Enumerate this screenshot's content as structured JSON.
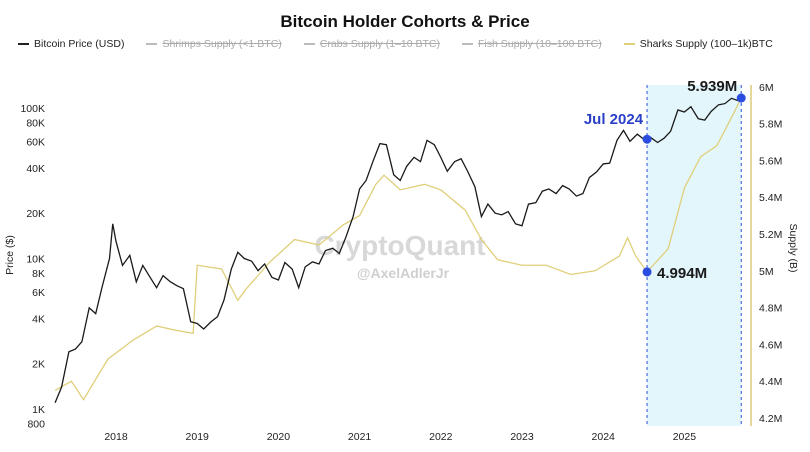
{
  "chart_data": {
    "type": "line",
    "title": "Bitcoin Holder Cohorts & Price",
    "legend": [
      {
        "label": "Bitcoin Price (USD)",
        "color": "#222222",
        "active": true
      },
      {
        "label": "Shrimps Supply (<1 BTC)",
        "color": "#bbbbbb",
        "active": false
      },
      {
        "label": "Crabs Supply (1–10 BTC)",
        "color": "#bbbbbb",
        "active": false
      },
      {
        "label": "Fish Supply (10–100 BTC)",
        "color": "#bbbbbb",
        "active": false
      },
      {
        "label": "Sharks Supply (100–1k)BTC",
        "color": "#e0cf7a",
        "active": true
      }
    ],
    "legend_position": "top",
    "ylabel_left": "Price ($)",
    "ylabel_right": "Supply (B)",
    "x_ticks": [
      "2018",
      "2019",
      "2020",
      "2021",
      "2022",
      "2023",
      "2024",
      "2025"
    ],
    "y_left_scale": "log",
    "y_left_ticks": [
      {
        "v": 800,
        "label": "800"
      },
      {
        "v": 1000,
        "label": "1K"
      },
      {
        "v": 2000,
        "label": "2K"
      },
      {
        "v": 4000,
        "label": "4K"
      },
      {
        "v": 6000,
        "label": "6K"
      },
      {
        "v": 8000,
        "label": "8K"
      },
      {
        "v": 10000,
        "label": "10K"
      },
      {
        "v": 20000,
        "label": "20K"
      },
      {
        "v": 40000,
        "label": "40K"
      },
      {
        "v": 60000,
        "label": "60K"
      },
      {
        "v": 80000,
        "label": "80K"
      },
      {
        "v": 100000,
        "label": "100K"
      }
    ],
    "y_right_ticks": [
      {
        "v": 4.2,
        "label": "4.2M"
      },
      {
        "v": 4.4,
        "label": "4.4M"
      },
      {
        "v": 4.6,
        "label": "4.6M"
      },
      {
        "v": 4.8,
        "label": "4.8M"
      },
      {
        "v": 5.0,
        "label": "5M"
      },
      {
        "v": 5.2,
        "label": "5.2M"
      },
      {
        "v": 5.4,
        "label": "5.4M"
      },
      {
        "v": 5.6,
        "label": "5.6M"
      },
      {
        "v": 5.8,
        "label": "5.8M"
      },
      {
        "v": 6.0,
        "label": "6M"
      }
    ],
    "ylim_left": [
      800,
      130000
    ],
    "ylim_right": [
      4.2,
      6.0
    ],
    "xlim": [
      2017.2,
      2025.75
    ],
    "series": [
      {
        "name": "Bitcoin Price (USD)",
        "color": "#1a1a1a",
        "x": [
          2017.25,
          2017.33,
          2017.42,
          2017.5,
          2017.58,
          2017.67,
          2017.75,
          2017.83,
          2017.92,
          2017.96,
          2018.0,
          2018.08,
          2018.17,
          2018.25,
          2018.33,
          2018.42,
          2018.5,
          2018.58,
          2018.67,
          2018.75,
          2018.83,
          2018.92,
          2019.0,
          2019.08,
          2019.17,
          2019.25,
          2019.33,
          2019.42,
          2019.5,
          2019.58,
          2019.67,
          2019.75,
          2019.83,
          2019.92,
          2020.0,
          2020.08,
          2020.17,
          2020.25,
          2020.33,
          2020.42,
          2020.5,
          2020.58,
          2020.67,
          2020.75,
          2020.83,
          2020.92,
          2021.0,
          2021.08,
          2021.17,
          2021.25,
          2021.33,
          2021.42,
          2021.5,
          2021.58,
          2021.67,
          2021.75,
          2021.83,
          2021.92,
          2022.0,
          2022.08,
          2022.17,
          2022.25,
          2022.33,
          2022.42,
          2022.5,
          2022.58,
          2022.67,
          2022.75,
          2022.83,
          2022.92,
          2023.0,
          2023.08,
          2023.17,
          2023.25,
          2023.33,
          2023.42,
          2023.5,
          2023.58,
          2023.67,
          2023.75,
          2023.83,
          2023.92,
          2024.0,
          2024.08,
          2024.17,
          2024.25,
          2024.33,
          2024.42,
          2024.5,
          2024.58,
          2024.67,
          2024.75,
          2024.83,
          2024.92,
          2025.0,
          2025.08,
          2025.17,
          2025.25,
          2025.33,
          2025.42,
          2025.5,
          2025.58,
          2025.7
        ],
        "y": [
          1100,
          1400,
          2400,
          2500,
          2800,
          4700,
          4300,
          6500,
          10000,
          17000,
          13000,
          9000,
          10500,
          7000,
          9000,
          7500,
          6400,
          7700,
          7000,
          6600,
          6300,
          3800,
          3700,
          3400,
          3800,
          4100,
          5300,
          8500,
          11000,
          10000,
          9600,
          8300,
          9200,
          7500,
          7200,
          9400,
          8500,
          6400,
          8800,
          9500,
          9200,
          11300,
          11700,
          10800,
          13800,
          19000,
          29000,
          33000,
          45000,
          58000,
          57000,
          36000,
          33000,
          41000,
          47000,
          44000,
          61000,
          57000,
          47000,
          38000,
          44000,
          46000,
          38000,
          30000,
          19000,
          23000,
          20000,
          19500,
          20500,
          17000,
          16500,
          23000,
          23500,
          28000,
          29000,
          27000,
          30500,
          29000,
          26000,
          27000,
          34500,
          37700,
          42500,
          43000,
          61000,
          71000,
          60000,
          67000,
          62000,
          64000,
          59000,
          63000,
          70000,
          97000,
          94000,
          102000,
          85000,
          83000,
          95000,
          105000,
          107000,
          116000,
          110000
        ]
      },
      {
        "name": "Sharks Supply (100–1k)BTC",
        "color": "#e0cf7a",
        "x": [
          2017.25,
          2017.45,
          2017.6,
          2017.9,
          2018.2,
          2018.5,
          2018.7,
          2018.95,
          2019.0,
          2019.3,
          2019.5,
          2019.6,
          2019.9,
          2020.2,
          2020.5,
          2020.8,
          2021.0,
          2021.2,
          2021.3,
          2021.5,
          2021.8,
          2022.0,
          2022.3,
          2022.5,
          2022.7,
          2023.0,
          2023.3,
          2023.6,
          2023.9,
          2024.2,
          2024.3,
          2024.4,
          2024.54,
          2024.8,
          2025.0,
          2025.2,
          2025.4,
          2025.6,
          2025.7
        ],
        "y": [
          4.35,
          4.4,
          4.3,
          4.52,
          4.62,
          4.7,
          4.68,
          4.66,
          5.03,
          5.01,
          4.84,
          4.9,
          5.05,
          5.17,
          5.14,
          5.25,
          5.3,
          5.47,
          5.52,
          5.44,
          5.47,
          5.44,
          5.33,
          5.17,
          5.06,
          5.03,
          5.03,
          4.98,
          5.0,
          5.08,
          5.18,
          5.08,
          4.994,
          5.12,
          5.45,
          5.62,
          5.68,
          5.85,
          5.939
        ]
      }
    ],
    "annotations": {
      "highlight_start": "Jul 2024",
      "highlight_start_x": 2024.54,
      "highlight_end_x": 2025.7,
      "jul_label": "Jul 2024",
      "start_supply_label": "4.994M",
      "start_supply_value": 4.994,
      "start_price_value": 62000,
      "end_supply_label": "5.939M",
      "end_supply_value": 5.939
    },
    "watermark": {
      "brand": "CryptoQuant",
      "handle": "@AxelAdlerJr"
    }
  }
}
